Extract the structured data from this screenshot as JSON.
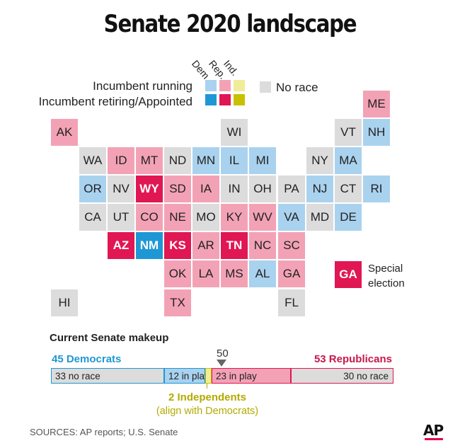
{
  "title": "Senate 2020 landscape",
  "colors": {
    "dem_running": "#a9d2ef",
    "dem_retiring": "#1f97d4",
    "rep_running": "#f3a2b6",
    "rep_retiring": "#e01753",
    "ind_running": "#f0ed98",
    "ind_retiring": "#c9c000",
    "no_race": "#dcdcdc"
  },
  "legend": {
    "headers": [
      "Dem.",
      "Rep.",
      "Ind."
    ],
    "incumbent_running": "Incumbent running",
    "incumbent_retiring": "Incumbent retiring/Appointed",
    "no_race": "No race"
  },
  "states": [
    {
      "abbr": "ME",
      "status": "rep_running"
    },
    {
      "abbr": "AK",
      "status": "rep_running"
    },
    {
      "abbr": "WI",
      "status": "no_race"
    },
    {
      "abbr": "VT",
      "status": "no_race"
    },
    {
      "abbr": "NH",
      "status": "dem_running"
    },
    {
      "abbr": "WA",
      "status": "no_race"
    },
    {
      "abbr": "ID",
      "status": "rep_running"
    },
    {
      "abbr": "MT",
      "status": "rep_running"
    },
    {
      "abbr": "ND",
      "status": "no_race"
    },
    {
      "abbr": "MN",
      "status": "dem_running"
    },
    {
      "abbr": "IL",
      "status": "dem_running"
    },
    {
      "abbr": "MI",
      "status": "dem_running"
    },
    {
      "abbr": "NY",
      "status": "no_race"
    },
    {
      "abbr": "MA",
      "status": "dem_running"
    },
    {
      "abbr": "OR",
      "status": "dem_running"
    },
    {
      "abbr": "NV",
      "status": "no_race"
    },
    {
      "abbr": "WY",
      "status": "rep_retiring"
    },
    {
      "abbr": "SD",
      "status": "rep_running"
    },
    {
      "abbr": "IA",
      "status": "rep_running"
    },
    {
      "abbr": "IN",
      "status": "no_race"
    },
    {
      "abbr": "OH",
      "status": "no_race"
    },
    {
      "abbr": "PA",
      "status": "no_race"
    },
    {
      "abbr": "NJ",
      "status": "dem_running"
    },
    {
      "abbr": "CT",
      "status": "no_race"
    },
    {
      "abbr": "RI",
      "status": "dem_running"
    },
    {
      "abbr": "CA",
      "status": "no_race"
    },
    {
      "abbr": "UT",
      "status": "no_race"
    },
    {
      "abbr": "CO",
      "status": "rep_running"
    },
    {
      "abbr": "NE",
      "status": "rep_running"
    },
    {
      "abbr": "MO",
      "status": "no_race"
    },
    {
      "abbr": "KY",
      "status": "rep_running"
    },
    {
      "abbr": "WV",
      "status": "rep_running"
    },
    {
      "abbr": "VA",
      "status": "dem_running"
    },
    {
      "abbr": "MD",
      "status": "no_race"
    },
    {
      "abbr": "DE",
      "status": "dem_running"
    },
    {
      "abbr": "AZ",
      "status": "rep_retiring"
    },
    {
      "abbr": "NM",
      "status": "dem_retiring"
    },
    {
      "abbr": "KS",
      "status": "rep_retiring"
    },
    {
      "abbr": "AR",
      "status": "rep_running"
    },
    {
      "abbr": "TN",
      "status": "rep_retiring"
    },
    {
      "abbr": "NC",
      "status": "rep_running"
    },
    {
      "abbr": "SC",
      "status": "rep_running"
    },
    {
      "abbr": "OK",
      "status": "rep_running"
    },
    {
      "abbr": "LA",
      "status": "rep_running"
    },
    {
      "abbr": "MS",
      "status": "rep_running"
    },
    {
      "abbr": "AL",
      "status": "dem_running"
    },
    {
      "abbr": "GA",
      "status": "rep_running"
    },
    {
      "abbr": "HI",
      "status": "no_race"
    },
    {
      "abbr": "TX",
      "status": "rep_running"
    },
    {
      "abbr": "FL",
      "status": "no_race"
    }
  ],
  "special_election": {
    "abbr": "GA",
    "status": "rep_retiring",
    "label_line1": "Special",
    "label_line2": "election"
  },
  "makeup": {
    "title": "Current Senate makeup",
    "total_seats": 100,
    "majority_marker": "50",
    "democrats_label": "45 Democrats",
    "republicans_label": "53 Republicans",
    "independents_label": "2 Independents",
    "independents_note": "(align with Democrats)",
    "segments": [
      {
        "label": "33 no race",
        "seats": 33,
        "party": "dem",
        "type": "no_race"
      },
      {
        "label": "12 in play",
        "seats": 12,
        "party": "dem",
        "type": "in_play"
      },
      {
        "label": "",
        "seats": 2,
        "party": "ind",
        "type": "no_race"
      },
      {
        "label": "23 in play",
        "seats": 23,
        "party": "rep",
        "type": "in_play"
      },
      {
        "label": "30 no race",
        "seats": 30,
        "party": "rep",
        "type": "no_race"
      }
    ]
  },
  "sources": "SOURCES: AP reports; U.S. Senate",
  "logo": "AP"
}
